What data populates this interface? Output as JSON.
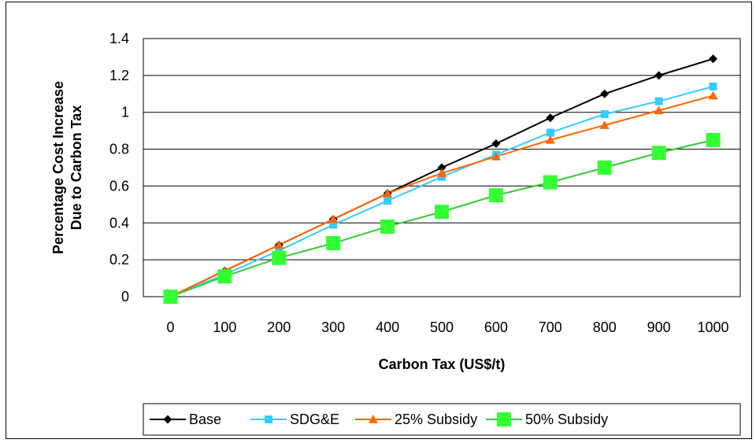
{
  "chart_data": {
    "type": "line",
    "title": "",
    "xlabel": "Carbon Tax (US$/t)",
    "ylabel_lines": [
      "Percentage Cost Increase",
      "Due to Carbon Tax"
    ],
    "x": [
      0,
      100,
      200,
      300,
      400,
      500,
      600,
      700,
      800,
      900,
      1000
    ],
    "categories": [
      "0",
      "100",
      "200",
      "300",
      "400",
      "500",
      "600",
      "700",
      "800",
      "900",
      "1000"
    ],
    "ylim": [
      0,
      1.4
    ],
    "yticks": [
      0,
      0.2,
      0.4,
      0.6,
      0.8,
      1,
      1.2,
      1.4
    ],
    "ytick_labels": [
      "0",
      "0.2",
      "0.4",
      "0.6",
      "0.8",
      "1",
      "1.2",
      "1.4"
    ],
    "grid": "horizontal",
    "legend_position": "bottom",
    "series": [
      {
        "name": "Base",
        "color": "#000000",
        "marker": "diamond",
        "values": [
          0,
          0.14,
          0.28,
          0.42,
          0.56,
          0.7,
          0.83,
          0.97,
          1.1,
          1.2,
          1.29
        ]
      },
      {
        "name": "SDG&E",
        "color": "#33ccff",
        "marker": "square",
        "values": [
          0,
          0.12,
          0.25,
          0.39,
          0.52,
          0.65,
          0.77,
          0.89,
          0.99,
          1.06,
          1.14
        ]
      },
      {
        "name": "25% Subsidy",
        "color": "#ff6600",
        "marker": "triangle",
        "values": [
          0,
          0.14,
          0.28,
          0.42,
          0.56,
          0.67,
          0.76,
          0.85,
          0.93,
          1.01,
          1.09
        ]
      },
      {
        "name": "50% Subsidy",
        "color": "#33ff33",
        "line_color": "#33cc33",
        "marker": "big-square",
        "values": [
          0,
          0.11,
          0.21,
          0.29,
          0.38,
          0.46,
          0.55,
          0.62,
          0.7,
          0.78,
          0.85
        ]
      }
    ]
  }
}
